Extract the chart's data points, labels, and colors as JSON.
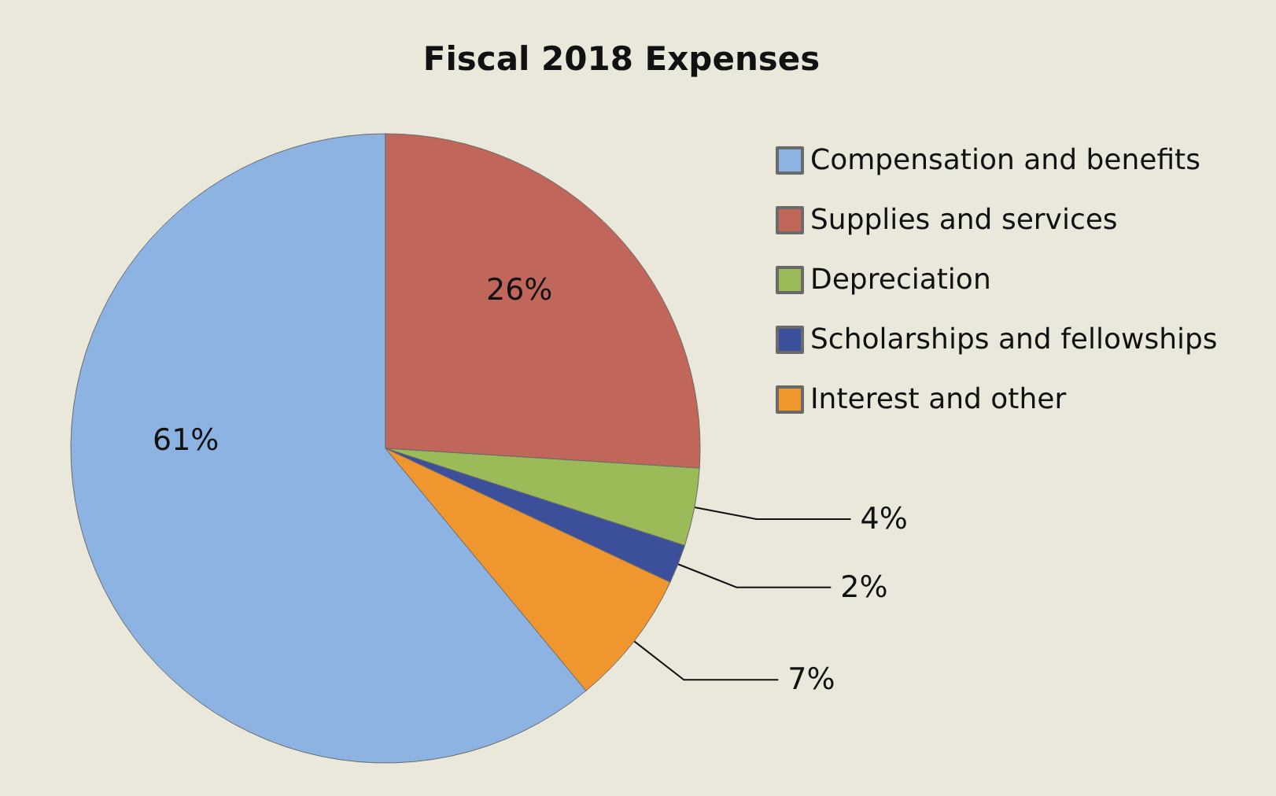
{
  "chart_data": {
    "type": "pie",
    "title": "Fiscal 2018 Expenses",
    "categories": [
      "Compensation and benefits",
      "Supplies and services",
      "Depreciation",
      "Scholarships and fellowships",
      "Interest and other"
    ],
    "values": [
      61,
      26,
      4,
      2,
      7
    ],
    "colors": [
      "#8db3e2",
      "#c0665a",
      "#9bbb59",
      "#3c4f9a",
      "#f0962e"
    ],
    "value_labels": [
      "61%",
      "26%",
      "4%",
      "2%",
      "7%"
    ],
    "legend": "top right"
  }
}
